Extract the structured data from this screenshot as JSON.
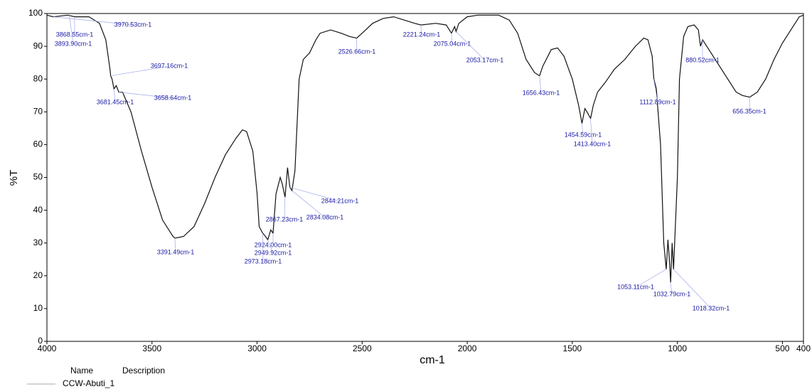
{
  "chart_data": {
    "type": "line",
    "x_label": "cm-1",
    "y_label": "%T",
    "xlim": [
      4000,
      400
    ],
    "ylim": [
      0,
      100
    ],
    "xticks": [
      4000,
      3500,
      3000,
      2500,
      2000,
      1500,
      1000,
      500,
      400
    ],
    "yticks": [
      0,
      10,
      20,
      30,
      40,
      50,
      60,
      70,
      80,
      90,
      100
    ],
    "legend_headers": [
      "Name",
      "Description"
    ],
    "series": [
      {
        "name": "CCW-Abuti_1",
        "color": "#111111",
        "x": [
          4000,
          3970,
          3900,
          3868,
          3800,
          3750,
          3720,
          3700,
          3697,
          3690,
          3681,
          3670,
          3658,
          3640,
          3600,
          3550,
          3500,
          3450,
          3400,
          3391,
          3350,
          3300,
          3250,
          3200,
          3150,
          3100,
          3070,
          3050,
          3020,
          3000,
          2990,
          2973,
          2960,
          2949,
          2935,
          2924,
          2910,
          2890,
          2880,
          2867,
          2855,
          2844,
          2834,
          2820,
          2800,
          2780,
          2750,
          2720,
          2700,
          2650,
          2600,
          2560,
          2526,
          2500,
          2450,
          2400,
          2350,
          2300,
          2250,
          2221,
          2150,
          2100,
          2075,
          2060,
          2053,
          2040,
          2000,
          1950,
          1850,
          1800,
          1760,
          1720,
          1680,
          1656,
          1640,
          1600,
          1570,
          1540,
          1500,
          1470,
          1454,
          1440,
          1430,
          1413,
          1400,
          1380,
          1343,
          1300,
          1250,
          1200,
          1160,
          1140,
          1120,
          1112,
          1100,
          1080,
          1065,
          1053,
          1045,
          1038,
          1032,
          1025,
          1018,
          1000,
          990,
          970,
          950,
          920,
          900,
          890,
          880,
          860,
          830,
          800,
          760,
          720,
          690,
          656,
          620,
          580,
          540,
          500,
          470,
          440,
          420,
          400
        ],
        "values": [
          99.5,
          99,
          99.5,
          99,
          99,
          97,
          92,
          83,
          81,
          80,
          77,
          78,
          76,
          76,
          70,
          58,
          47,
          37,
          32,
          31.5,
          32,
          35,
          42,
          50,
          57,
          62,
          64.5,
          64,
          58,
          45,
          35,
          33,
          32,
          31,
          34,
          33,
          45,
          50,
          48,
          44,
          53,
          47,
          46,
          52,
          80,
          86,
          88,
          92,
          94,
          95,
          94,
          93,
          92.5,
          94,
          97,
          98.5,
          99,
          98,
          97,
          96.5,
          97,
          96.5,
          94,
          96,
          94.5,
          97,
          99,
          99.5,
          99.5,
          98,
          94,
          86,
          82,
          81,
          84,
          89,
          89.5,
          87,
          80,
          72,
          66.5,
          71,
          70,
          68,
          72,
          76,
          79,
          83,
          86,
          90,
          92.5,
          92,
          87,
          80,
          77,
          60,
          30,
          22,
          31,
          25,
          18,
          30,
          22,
          50,
          80,
          93,
          96,
          96.5,
          95,
          90,
          92,
          90,
          87,
          84,
          80,
          76,
          75,
          74.5,
          76,
          80,
          86,
          91,
          94,
          97,
          99,
          99.5
        ]
      }
    ],
    "annotations": [
      {
        "x": 3970.53,
        "y": 99,
        "label": "3970.53cm-1"
      },
      {
        "x": 3868.55,
        "y": 99,
        "label": "3868.55cm-1"
      },
      {
        "x": 3893.9,
        "y": 99.5,
        "label": "3893.90cm-1"
      },
      {
        "x": 3697.16,
        "y": 81,
        "label": "3697.16cm-1"
      },
      {
        "x": 3681.45,
        "y": 77,
        "label": "3681.45cm-1"
      },
      {
        "x": 3658.64,
        "y": 76,
        "label": "3658.64cm-1"
      },
      {
        "x": 3391.49,
        "y": 31.5,
        "label": "3391.49cm-1"
      },
      {
        "x": 2867.23,
        "y": 44,
        "label": "2867.23cm-1"
      },
      {
        "x": 2924.0,
        "y": 33,
        "label": "2924.00cm-1"
      },
      {
        "x": 2949.92,
        "y": 31,
        "label": "2949.92cm-1"
      },
      {
        "x": 2973.18,
        "y": 33,
        "label": "2973.18cm-1"
      },
      {
        "x": 2844.21,
        "y": 47,
        "label": "2844.21cm-1"
      },
      {
        "x": 2834.08,
        "y": 46,
        "label": "2834.08cm-1"
      },
      {
        "x": 2526.66,
        "y": 92.5,
        "label": "2526.66cm-1"
      },
      {
        "x": 2221.24,
        "y": 96.5,
        "label": "2221.24cm-1"
      },
      {
        "x": 2075.04,
        "y": 94,
        "label": "2075.04cm-1"
      },
      {
        "x": 2053.17,
        "y": 94.5,
        "label": "2053.17cm-1"
      },
      {
        "x": 1656.43,
        "y": 81,
        "label": "1656.43cm-1"
      },
      {
        "x": 1454.59,
        "y": 66.5,
        "label": "1454.59cm-1"
      },
      {
        "x": 1413.4,
        "y": 68,
        "label": "1413.40cm-1"
      },
      {
        "x": 1112.89,
        "y": 80,
        "label": "1112.89cm-1"
      },
      {
        "x": 1053.11,
        "y": 22,
        "label": "1053.11cm-1"
      },
      {
        "x": 1032.79,
        "y": 18,
        "label": "1032.79cm-1"
      },
      {
        "x": 1018.32,
        "y": 22,
        "label": "1018.32cm-1"
      },
      {
        "x": 880.52,
        "y": 92,
        "label": "880.52cm-1"
      },
      {
        "x": 656.35,
        "y": 74.5,
        "label": "656.35cm-1"
      }
    ]
  }
}
